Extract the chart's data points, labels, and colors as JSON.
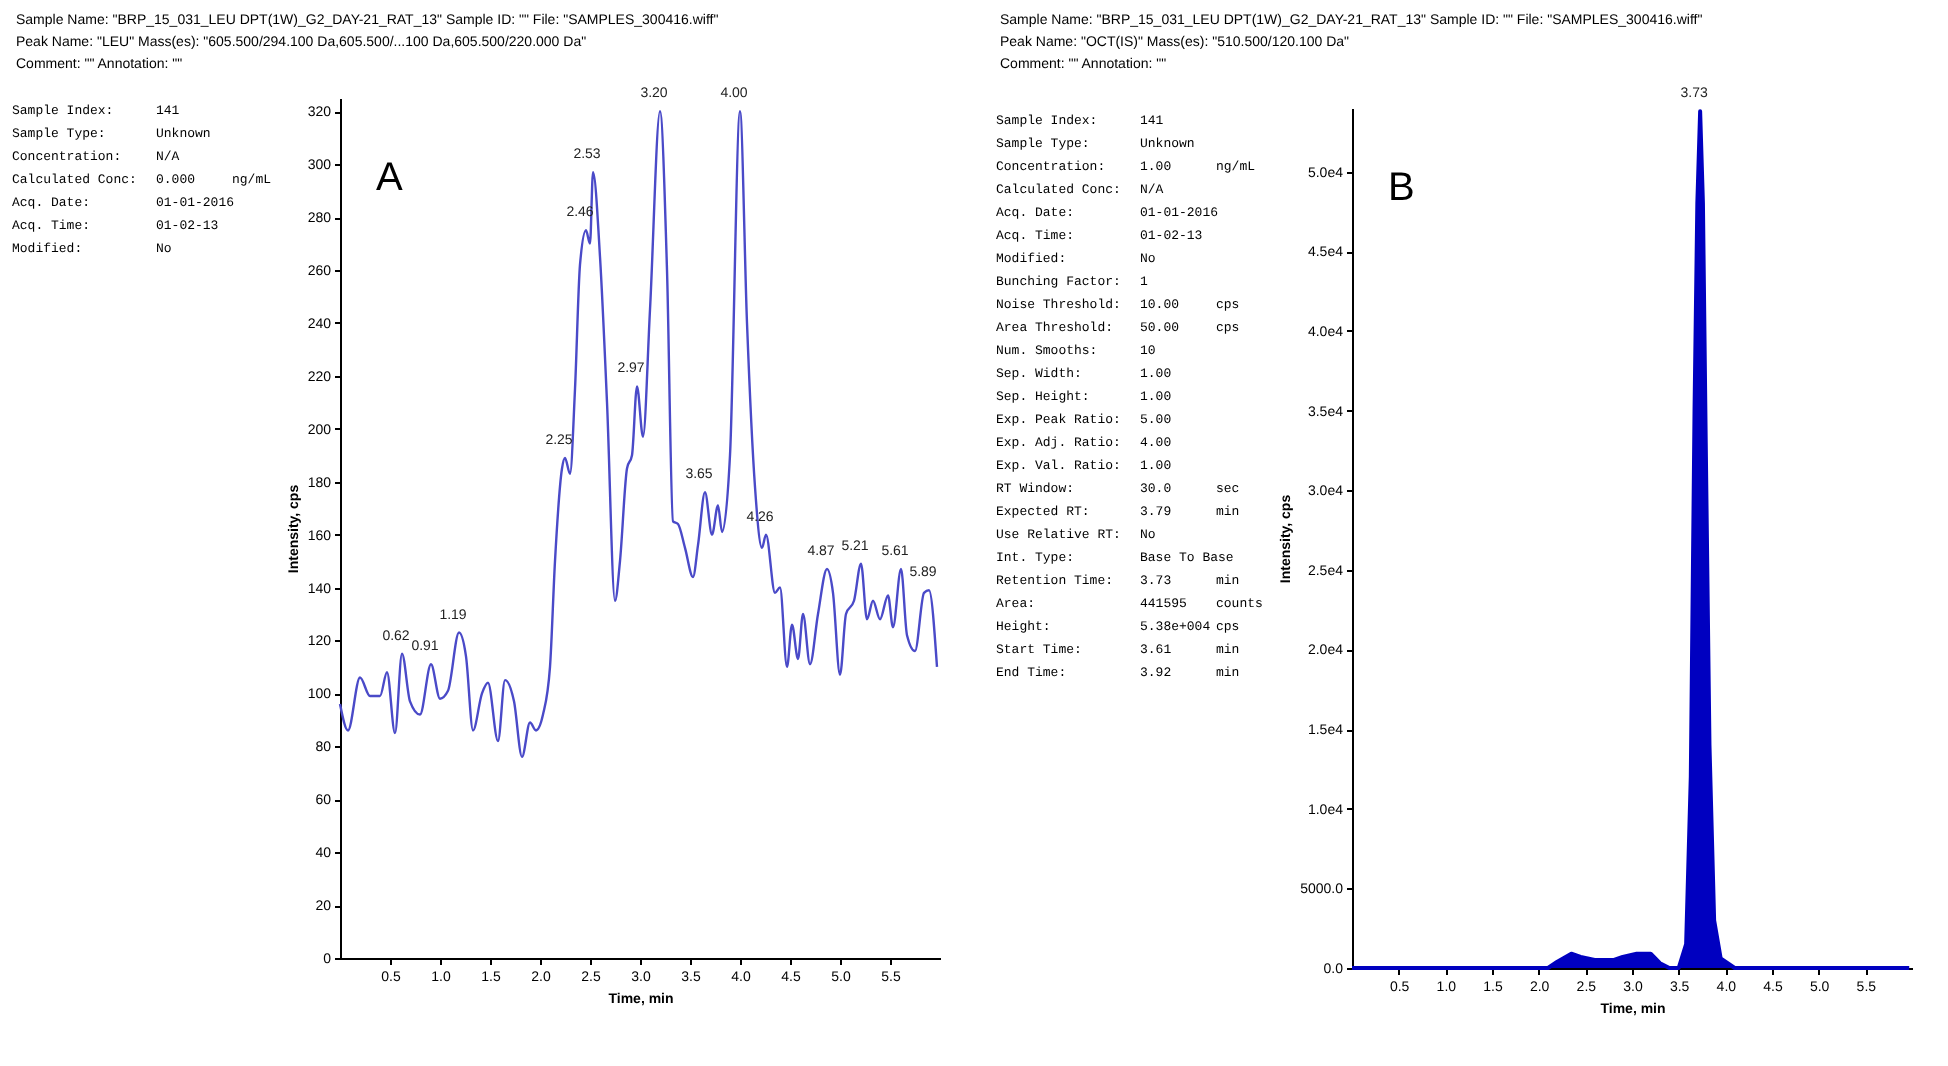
{
  "chart_data": [
    {
      "type": "line",
      "title": "A",
      "subtitle": "Sample Name: \"BRP_15_031_LEU DPT(1W)_G2_DAY-21_RAT_13\"  Sample ID: \"\"  File: \"SAMPLES_300416.wiff\"\nPeak Name: \"LEU\"  Mass(es): \"605.500/294.100 Da,605.500/...100 Da,605.500/220.000 Da\"\nComment: \"\"  Annotation: \"\"",
      "xlabel": "Time, min",
      "ylabel": "Intensity, cps",
      "color": "#4a4ac8",
      "x": [
        0,
        0.08,
        0.2,
        0.3,
        0.4,
        0.47,
        0.55,
        0.62,
        0.7,
        0.8,
        0.91,
        1.0,
        1.08,
        1.19,
        1.26,
        1.33,
        1.42,
        1.48,
        1.58,
        1.65,
        1.74,
        1.82,
        1.9,
        1.96,
        2.03,
        2.1,
        2.15,
        2.22,
        2.25,
        2.3,
        2.35,
        2.4,
        2.46,
        2.5,
        2.53,
        2.6,
        2.67,
        2.75,
        2.8,
        2.87,
        2.92,
        2.97,
        3.03,
        3.1,
        3.2,
        3.27,
        3.33,
        3.38,
        3.45,
        3.53,
        3.58,
        3.65,
        3.72,
        3.78,
        3.82,
        3.9,
        4.0,
        4.07,
        4.15,
        4.22,
        4.26,
        4.35,
        4.4,
        4.47,
        4.52,
        4.58,
        4.63,
        4.7,
        4.78,
        4.87,
        4.93,
        5.0,
        5.06,
        5.14,
        5.21,
        5.27,
        5.33,
        5.4,
        5.48,
        5.53,
        5.61,
        5.67,
        5.75,
        5.84,
        5.89,
        5.97
      ],
      "values": [
        96,
        86,
        106,
        99,
        99,
        108,
        85,
        115,
        97,
        92,
        111,
        98,
        101,
        123,
        114,
        86,
        100,
        104,
        82,
        105,
        97,
        76,
        89,
        86,
        92,
        110,
        150,
        185,
        189,
        183,
        215,
        262,
        275,
        270,
        297,
        265,
        210,
        135,
        150,
        185,
        190,
        216,
        197,
        245,
        320,
        260,
        165,
        164,
        155,
        144,
        156,
        176,
        160,
        171,
        161,
        190,
        320,
        240,
        178,
        155,
        160,
        138,
        140,
        110,
        126,
        113,
        130,
        111,
        130,
        147,
        138,
        107,
        130,
        135,
        149,
        128,
        135,
        128,
        137,
        125,
        147,
        122,
        116,
        138,
        139,
        110
      ],
      "xlim": [
        0,
        6
      ],
      "ylim": [
        0,
        325
      ],
      "xticks": [
        0.5,
        {
          "value": 1,
          "label": "1.0"
        },
        1.5,
        {
          "value": 2,
          "label": "2.0"
        },
        2.5,
        {
          "value": 3,
          "label": "3.0"
        },
        3.5,
        {
          "value": 4,
          "label": "4.0"
        },
        4.5,
        {
          "value": 5,
          "label": "5.0"
        },
        5.5
      ],
      "yticks": [
        0,
        20,
        40,
        60,
        80,
        100,
        120,
        140,
        160,
        180,
        200,
        220,
        240,
        260,
        280,
        300,
        320
      ],
      "annotations": [
        "Sample Index:\t141",
        "Sample Type:\tUnknown",
        "Concentration:\tN/A",
        "Calculated Conc:\t0.000\tng/mL",
        "Acq. Date:\t01-01-2016",
        "Acq. Time:\t01-02-13",
        "Modified:\tNo",
        {
          "text": "0.62",
          "x": 0.62,
          "y": 115
        },
        {
          "text": "0.91",
          "x": 0.91,
          "y": 111
        },
        {
          "text": "1.19",
          "x": 1.19,
          "y": 123
        },
        {
          "text": "2.25",
          "x": 2.25,
          "y": 189
        },
        {
          "text": "2.46",
          "x": 2.46,
          "y": 275
        },
        {
          "text": "2.53",
          "x": 2.53,
          "y": 297
        },
        {
          "text": "2.97",
          "x": 2.97,
          "y": 216
        },
        {
          "text": "3.20",
          "x": 3.2,
          "y": 320
        },
        {
          "text": "3.65",
          "x": 3.65,
          "y": 176
        },
        {
          "text": "4.00",
          "x": 4.0,
          "y": 320
        },
        {
          "text": "4.26",
          "x": 4.26,
          "y": 160
        },
        {
          "text": "4.87",
          "x": 4.87,
          "y": 147
        },
        {
          "text": "5.21",
          "x": 5.21,
          "y": 149
        },
        {
          "text": "5.61",
          "x": 5.61,
          "y": 147
        },
        {
          "text": "5.89",
          "x": 5.89,
          "y": 139
        }
      ]
    },
    {
      "type": "area",
      "title": "B",
      "subtitle": "Sample Name: \"BRP_15_031_LEU DPT(1W)_G2_DAY-21_RAT_13\"  Sample ID: \"\"  File: \"SAMPLES_300416.wiff\"\nPeak Name: \"OCT(IS)\"  Mass(es): \"510.500/120.100 Da\"\nComment: \"\"  Annotation: \"\"",
      "xlabel": "Time, min",
      "ylabel": "Intensity, cps",
      "color": "#0000c0",
      "x": [
        0,
        2.1,
        2.2,
        2.35,
        2.45,
        2.6,
        2.8,
        2.9,
        3.05,
        3.2,
        3.3,
        3.4,
        3.5,
        3.58,
        3.63,
        3.67,
        3.7,
        3.73,
        3.76,
        3.79,
        3.83,
        3.88,
        3.95,
        4.1,
        5.97
      ],
      "values": [
        0,
        0,
        400,
        900,
        700,
        500,
        500,
        700,
        900,
        900,
        300,
        0,
        0,
        1500,
        12000,
        35000,
        48000,
        53800,
        48000,
        33000,
        14000,
        3000,
        600,
        0,
        0
      ],
      "xlim": [
        0,
        6
      ],
      "ylim": [
        0,
        54000
      ],
      "xticks": [
        0.5,
        {
          "value": 1,
          "label": "1.0"
        },
        1.5,
        {
          "value": 2,
          "label": "2.0"
        },
        2.5,
        {
          "value": 3,
          "label": "3.0"
        },
        3.5,
        {
          "value": 4,
          "label": "4.0"
        },
        4.5,
        {
          "value": 5,
          "label": "5.0"
        },
        5.5
      ],
      "yticks": [
        {
          "value": 0,
          "label": "0.0"
        },
        {
          "value": 5000,
          "label": "5000.0"
        },
        {
          "value": 10000,
          "label": "1.0e4"
        },
        {
          "value": 15000,
          "label": "1.5e4"
        },
        {
          "value": 20000,
          "label": "2.0e4"
        },
        {
          "value": 25000,
          "label": "2.5e4"
        },
        {
          "value": 30000,
          "label": "3.0e4"
        },
        {
          "value": 35000,
          "label": "3.5e4"
        },
        {
          "value": 40000,
          "label": "4.0e4"
        },
        {
          "value": 45000,
          "label": "4.5e4"
        },
        {
          "value": 50000,
          "label": "5.0e4"
        }
      ],
      "annotations": [
        "Sample Index:\t141",
        "Sample Type:\tUnknown",
        "Concentration:\t1.00\tng/mL",
        "Calculated Conc:\tN/A",
        "Acq. Date:\t01-01-2016",
        "Acq. Time:\t01-02-13",
        "Modified:\tNo",
        "Bunching Factor:\t1",
        "Noise Threshold:\t10.00\tcps",
        "Area Threshold:\t50.00\tcps",
        "Num. Smooths:\t10",
        "Sep. Width:\t1.00",
        "Sep. Height:\t1.00",
        "Exp. Peak Ratio:\t5.00",
        "Exp. Adj. Ratio:\t4.00",
        "Exp. Val. Ratio:\t1.00",
        "RT Window:\t30.0\tsec",
        "Expected RT:\t3.79\tmin",
        "Use Relative RT:\tNo",
        "Int. Type:\tBase To Base",
        "Retention Time:\t3.73\tmin",
        "Area:\t441595\tcounts",
        "Height:\t5.38e+004\tcps",
        "Start Time:\t3.61\tmin",
        "End Time:\t3.92\tmin",
        {
          "text": "3.73",
          "x": 3.73,
          "y": 53800
        }
      ]
    }
  ]
}
